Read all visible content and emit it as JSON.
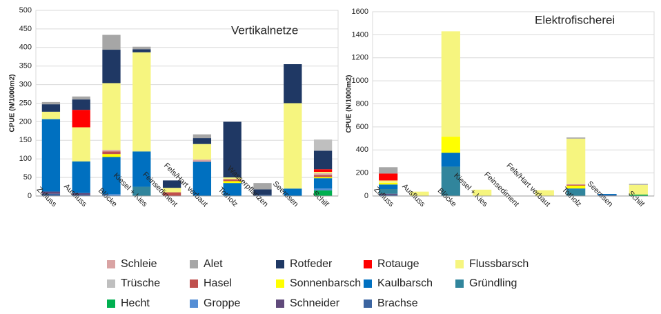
{
  "chart_data": [
    {
      "type": "bar",
      "annotation": "Vertikalnetze",
      "ylabel": "CPUE (N/1000m2)",
      "categories": [
        "Zufluss",
        "Ausfluss",
        "Blöcke",
        "Kiesel + Kies",
        "Feinsediment",
        "Fels/Hart verbaut",
        "Totholz",
        "Wasserpflanzen",
        "Seerosen",
        "Schilf"
      ],
      "ylim": [
        0,
        500
      ],
      "yticks": [
        0,
        50,
        100,
        150,
        200,
        250,
        300,
        350,
        400,
        450,
        500
      ],
      "grid": true,
      "series": [
        {
          "name": "Schleie",
          "color": "#d9a3a3",
          "values": [
            0,
            0,
            4,
            0,
            0,
            6,
            0,
            0,
            0,
            5
          ]
        },
        {
          "name": "Alet",
          "color": "#a6a6a6",
          "values": [
            6,
            8,
            40,
            7,
            0,
            10,
            0,
            17,
            0,
            0
          ]
        },
        {
          "name": "Rotfeder",
          "color": "#1f3864",
          "values": [
            20,
            28,
            90,
            8,
            20,
            16,
            150,
            15,
            105,
            50
          ]
        },
        {
          "name": "Rotauge",
          "color": "#ff0000",
          "values": [
            0,
            47,
            0,
            0,
            0,
            0,
            0,
            0,
            0,
            7
          ]
        },
        {
          "name": "Flussbarsch",
          "color": "#f6f57f",
          "values": [
            20,
            92,
            180,
            267,
            12,
            42,
            5,
            0,
            230,
            4
          ]
        },
        {
          "name": "Trüsche",
          "color": "#bfbfbf",
          "values": [
            0,
            0,
            0,
            0,
            0,
            0,
            0,
            0,
            0,
            30
          ]
        },
        {
          "name": "Hasel",
          "color": "#c0504d",
          "values": [
            0,
            0,
            7,
            0,
            10,
            0,
            5,
            0,
            0,
            5
          ]
        },
        {
          "name": "Sonnenbarsch",
          "color": "#ffff00",
          "values": [
            0,
            0,
            8,
            0,
            0,
            0,
            5,
            0,
            0,
            3
          ]
        },
        {
          "name": "Kaulbarsch",
          "color": "#0070c0",
          "values": [
            195,
            85,
            100,
            95,
            0,
            92,
            35,
            0,
            20,
            28
          ]
        },
        {
          "name": "Gründling",
          "color": "#31859c",
          "values": [
            0,
            0,
            0,
            25,
            0,
            0,
            0,
            0,
            0,
            0
          ]
        },
        {
          "name": "Hecht",
          "color": "#00b050",
          "values": [
            0,
            0,
            0,
            0,
            0,
            0,
            0,
            0,
            0,
            15
          ]
        },
        {
          "name": "Groppe",
          "color": "#558ed5",
          "values": [
            0,
            0,
            5,
            0,
            0,
            0,
            0,
            0,
            0,
            5
          ]
        },
        {
          "name": "Schneider",
          "color": "#604a7b",
          "values": [
            6,
            5,
            0,
            0,
            0,
            0,
            0,
            0,
            0,
            0
          ]
        },
        {
          "name": "Brachse",
          "color": "#3b64a0",
          "values": [
            6,
            3,
            0,
            0,
            0,
            0,
            0,
            3,
            0,
            0
          ]
        }
      ]
    },
    {
      "type": "bar",
      "annotation": "Elektrofischerei",
      "ylabel": "CPUE (N/1000m2)",
      "categories": [
        "Zufluss",
        "Ausfluss",
        "Blöcke",
        "Kiesel + Kies",
        "Feinsediment",
        "Fels/Hart verbaut",
        "Totholz",
        "Seerosen",
        "Schilf"
      ],
      "ylim": [
        0,
        1600
      ],
      "yticks": [
        0,
        200,
        400,
        600,
        800,
        1000,
        1200,
        1400,
        1600
      ],
      "grid": true,
      "series": [
        {
          "values": [
            0,
            0,
            0,
            0,
            0,
            0,
            5,
            0,
            0
          ]
        },
        {
          "values": [
            55,
            0,
            0,
            0,
            0,
            0,
            10,
            0,
            8
          ]
        },
        {
          "values": [
            0,
            0,
            0,
            0,
            0,
            0,
            0,
            0,
            0
          ]
        },
        {
          "values": [
            60,
            0,
            0,
            0,
            0,
            0,
            0,
            0,
            0
          ]
        },
        {
          "values": [
            20,
            38,
            915,
            55,
            0,
            50,
            395,
            0,
            85
          ]
        },
        {
          "values": [
            0,
            0,
            0,
            0,
            0,
            0,
            0,
            0,
            0
          ]
        },
        {
          "values": [
            0,
            0,
            0,
            0,
            0,
            0,
            8,
            0,
            0
          ]
        },
        {
          "values": [
            15,
            0,
            140,
            0,
            0,
            0,
            25,
            0,
            0
          ]
        },
        {
          "values": [
            40,
            0,
            120,
            0,
            0,
            0,
            10,
            8,
            0
          ]
        },
        {
          "values": [
            40,
            0,
            255,
            0,
            0,
            0,
            55,
            0,
            0
          ]
        },
        {
          "values": [
            0,
            0,
            0,
            0,
            0,
            0,
            0,
            0,
            12
          ]
        },
        {
          "values": [
            0,
            0,
            0,
            0,
            0,
            0,
            0,
            0,
            0
          ]
        },
        {
          "values": [
            10,
            0,
            0,
            0,
            0,
            0,
            0,
            0,
            0
          ]
        },
        {
          "values": [
            10,
            0,
            0,
            0,
            0,
            0,
            0,
            10,
            0
          ]
        }
      ]
    }
  ]
}
